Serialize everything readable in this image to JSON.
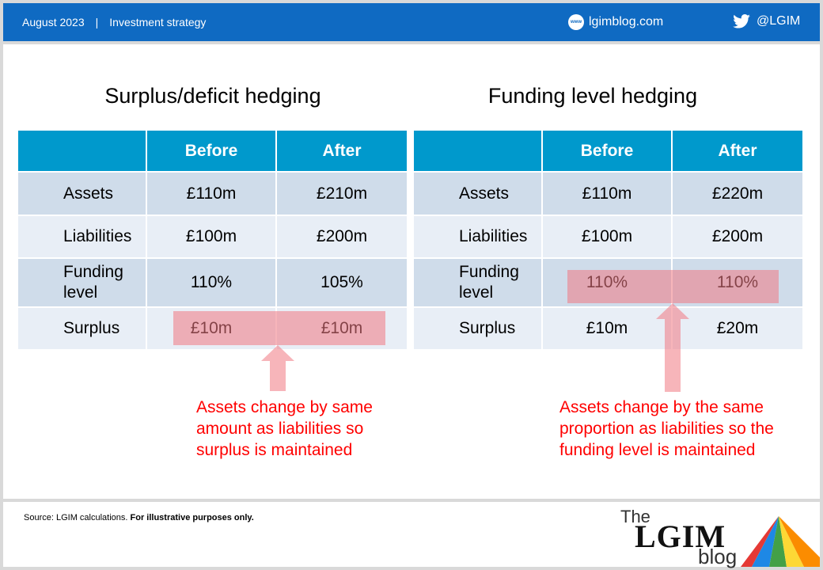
{
  "header": {
    "date": "August 2023",
    "separator": "|",
    "category": "Investment strategy",
    "blog_icon_text": "www",
    "blog_url": "lgimblog.com",
    "twitter_handle": "@LGIM"
  },
  "left": {
    "title": "Surplus/deficit hedging",
    "headers": [
      "",
      "Before",
      "After"
    ],
    "rows": [
      {
        "label": "Assets",
        "before": "£110m",
        "after": "£210m"
      },
      {
        "label": "Liabilities",
        "before": "£100m",
        "after": "£200m"
      },
      {
        "label": "Funding level",
        "before": "110%",
        "after": "105%"
      },
      {
        "label": "Surplus",
        "before": "£10m",
        "after": "£10m"
      }
    ],
    "note": "Assets change by same amount as liabilities so surplus is maintained"
  },
  "right": {
    "title": "Funding level hedging",
    "headers": [
      "",
      "Before",
      "After"
    ],
    "rows": [
      {
        "label": "Assets",
        "before": "£110m",
        "after": "£220m"
      },
      {
        "label": "Liabilities",
        "before": "£100m",
        "after": "£200m"
      },
      {
        "label": "Funding level",
        "before": "110%",
        "after": "110%"
      },
      {
        "label": "Surplus",
        "before": "£10m",
        "after": "£20m"
      }
    ],
    "note": "Assets change by the same proportion as liabilities so the funding level is maintained"
  },
  "footer": {
    "source": "Source: LGIM calculations.",
    "disclaimer": "For illustrative purposes only.",
    "logo_the": "The",
    "logo_lgim": "LGIM",
    "logo_blog": "blog"
  },
  "colors": {
    "header_bg": "#0f6ac2",
    "table_header": "#0099cc",
    "row_dark": "#cfdcea",
    "row_light": "#e8eef6",
    "highlight": "#f08090",
    "note_text": "#ff0000"
  }
}
